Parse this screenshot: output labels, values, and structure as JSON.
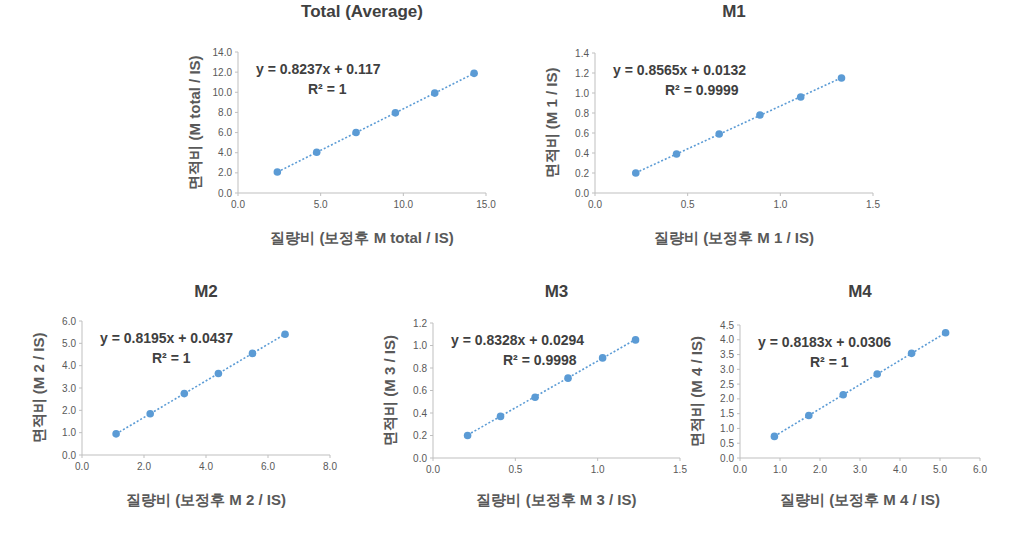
{
  "chart_data": [
    {
      "type": "scatter",
      "title": "Total (Average)",
      "x_label": "질량비 (보정후 M total / IS)",
      "y_label": "면적비 (M total / IS)",
      "x": [
        2.38,
        4.76,
        7.14,
        9.52,
        11.9,
        14.28
      ],
      "values": [
        2.08,
        4.04,
        6.0,
        7.96,
        9.92,
        11.88
      ],
      "color": "#5b9bd5",
      "marker": "circle",
      "line_style": "dotted",
      "trendline": {
        "slope": 0.8237,
        "intercept": 0.117
      },
      "annotations": [
        "y = 0.8237x + 0.117",
        "R² = 1"
      ],
      "xlim": [
        0,
        15
      ],
      "xticks": [
        {
          "value": 0,
          "label": "0.0"
        },
        {
          "value": 5,
          "label": "5.0"
        },
        {
          "value": 10,
          "label": "10.0"
        },
        {
          "value": 15,
          "label": "15.0"
        }
      ],
      "ylim": [
        0,
        14
      ],
      "yticks": [
        {
          "value": 0,
          "label": "0.0"
        },
        {
          "value": 2,
          "label": "2.0"
        },
        {
          "value": 4,
          "label": "4.0"
        },
        {
          "value": 6,
          "label": "6.0"
        },
        {
          "value": 8,
          "label": "8.0"
        },
        {
          "value": 10,
          "label": "10.0"
        },
        {
          "value": 12,
          "label": "12.0"
        },
        {
          "value": 14,
          "label": "14.0"
        }
      ],
      "grid": false
    },
    {
      "type": "scatter",
      "title": "M1",
      "x_label": "질량비 (보정후 M 1 / IS)",
      "y_label": "면적비 (M 1 / IS)",
      "x": [
        0.22,
        0.44,
        0.67,
        0.89,
        1.11,
        1.33
      ],
      "values": [
        0.2,
        0.39,
        0.59,
        0.78,
        0.96,
        1.15
      ],
      "color": "#5b9bd5",
      "marker": "circle",
      "line_style": "dotted",
      "trendline": {
        "slope": 0.8565,
        "intercept": 0.0132
      },
      "annotations": [
        "y = 0.8565x + 0.0132",
        "R² = 0.9999"
      ],
      "xlim": [
        0,
        1.5
      ],
      "xticks": [
        {
          "value": 0,
          "label": "0.0"
        },
        {
          "value": 0.5,
          "label": "0.5"
        },
        {
          "value": 1,
          "label": "1.0"
        },
        {
          "value": 1.5,
          "label": "1.5"
        }
      ],
      "ylim": [
        0,
        1.4
      ],
      "yticks": [
        {
          "value": 0,
          "label": "0.0"
        },
        {
          "value": 0.2,
          "label": "0.2"
        },
        {
          "value": 0.4,
          "label": "0.4"
        },
        {
          "value": 0.6,
          "label": "0.6"
        },
        {
          "value": 0.8,
          "label": "0.8"
        },
        {
          "value": 1,
          "label": "1.0"
        },
        {
          "value": 1.2,
          "label": "1.2"
        },
        {
          "value": 1.4,
          "label": "1.4"
        }
      ],
      "grid": false
    },
    {
      "type": "scatter",
      "title": "M2",
      "x_label": "질량비 (보정후 M 2 / IS)",
      "y_label": "면적비 (M 2 / IS)",
      "x": [
        1.1,
        2.2,
        3.3,
        4.4,
        5.5,
        6.55
      ],
      "values": [
        0.946,
        1.85,
        2.75,
        3.65,
        4.55,
        5.41
      ],
      "color": "#5b9bd5",
      "marker": "circle",
      "line_style": "dotted",
      "trendline": {
        "slope": 0.8195,
        "intercept": 0.0437
      },
      "annotations": [
        "y = 0.8195x + 0.0437",
        "R² = 1"
      ],
      "xlim": [
        0,
        8
      ],
      "xticks": [
        {
          "value": 0,
          "label": "0.0"
        },
        {
          "value": 2,
          "label": "2.0"
        },
        {
          "value": 4,
          "label": "4.0"
        },
        {
          "value": 6,
          "label": "6.0"
        },
        {
          "value": 8,
          "label": "8.0"
        }
      ],
      "ylim": [
        0,
        6
      ],
      "yticks": [
        {
          "value": 0,
          "label": "0.0"
        },
        {
          "value": 1,
          "label": "1.0"
        },
        {
          "value": 2,
          "label": "2.0"
        },
        {
          "value": 3,
          "label": "3.0"
        },
        {
          "value": 4,
          "label": "4.0"
        },
        {
          "value": 5,
          "label": "5.0"
        },
        {
          "value": 6,
          "label": "6.0"
        }
      ],
      "grid": false
    },
    {
      "type": "scatter",
      "title": "M3",
      "x_label": "질량비 (보정후 M 3 / IS)",
      "y_label": "면적비 (M 3 / IS)",
      "x": [
        0.21,
        0.41,
        0.62,
        0.82,
        1.03,
        1.23
      ],
      "values": [
        0.2,
        0.37,
        0.54,
        0.71,
        0.89,
        1.05
      ],
      "color": "#5b9bd5",
      "marker": "circle",
      "line_style": "dotted",
      "trendline": {
        "slope": 0.8328,
        "intercept": 0.0294
      },
      "annotations": [
        "y = 0.8328x + 0.0294",
        "R² = 0.9998"
      ],
      "xlim": [
        0,
        1.5
      ],
      "xticks": [
        {
          "value": 0,
          "label": "0.0"
        },
        {
          "value": 0.5,
          "label": "0.5"
        },
        {
          "value": 1,
          "label": "1.0"
        },
        {
          "value": 1.5,
          "label": "1.5"
        }
      ],
      "ylim": [
        0,
        1.2
      ],
      "yticks": [
        {
          "value": 0,
          "label": "0.0"
        },
        {
          "value": 0.2,
          "label": "0.2"
        },
        {
          "value": 0.4,
          "label": "0.4"
        },
        {
          "value": 0.6,
          "label": "0.6"
        },
        {
          "value": 0.8,
          "label": "0.8"
        },
        {
          "value": 1,
          "label": "1.0"
        },
        {
          "value": 1.2,
          "label": "1.2"
        }
      ],
      "grid": false
    },
    {
      "type": "scatter",
      "title": "M4",
      "x_label": "질량비 (보정후 M 4 / IS)",
      "y_label": "면적비 (M 4 / IS)",
      "x": [
        0.86,
        1.72,
        2.58,
        3.43,
        4.29,
        5.14
      ],
      "values": [
        0.73,
        1.44,
        2.14,
        2.84,
        3.54,
        4.24
      ],
      "color": "#5b9bd5",
      "marker": "circle",
      "line_style": "dotted",
      "trendline": {
        "slope": 0.8183,
        "intercept": 0.0306
      },
      "annotations": [
        "y = 0.8183x + 0.0306",
        "R² = 1"
      ],
      "xlim": [
        0,
        6
      ],
      "xticks": [
        {
          "value": 0,
          "label": "0.0"
        },
        {
          "value": 1,
          "label": "1.0"
        },
        {
          "value": 2,
          "label": "2.0"
        },
        {
          "value": 3,
          "label": "3.0"
        },
        {
          "value": 4,
          "label": "4.0"
        },
        {
          "value": 5,
          "label": "5.0"
        },
        {
          "value": 6,
          "label": "6.0"
        }
      ],
      "ylim": [
        0,
        4.5
      ],
      "yticks": [
        {
          "value": 0,
          "label": "0.0"
        },
        {
          "value": 0.5,
          "label": "0.5"
        },
        {
          "value": 1,
          "label": "1.0"
        },
        {
          "value": 1.5,
          "label": "1.5"
        },
        {
          "value": 2,
          "label": "2.0"
        },
        {
          "value": 2.5,
          "label": "2.5"
        },
        {
          "value": 3,
          "label": "3.0"
        },
        {
          "value": 3.5,
          "label": "3.5"
        },
        {
          "value": 4,
          "label": "4.0"
        },
        {
          "value": 4.5,
          "label": "4.5"
        }
      ],
      "grid": false
    }
  ]
}
